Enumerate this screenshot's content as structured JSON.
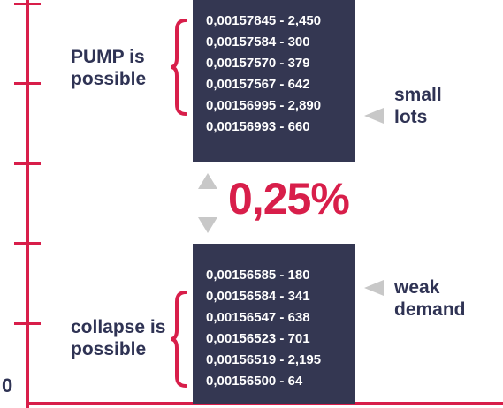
{
  "axis": {
    "zero_label": "0"
  },
  "pump": {
    "label_line1": "PUMP is",
    "label_line2": "possible",
    "orders": [
      "0,00157845 - 2,450",
      "0,00157584 - 300",
      "0,00157570 - 379",
      "0,00157567 - 642",
      "0,00156995 - 2,890",
      "0,00156993 - 660"
    ],
    "note_line1": "small",
    "note_line2": "lots"
  },
  "spread": {
    "value": "0,25%"
  },
  "collapse": {
    "label_line1": "collapse is",
    "label_line2": "possible",
    "orders": [
      "0,00156585 - 180",
      "0,00156584 - 341",
      "0,00156547 - 638",
      "0,00156523 - 701",
      "0,00156519 - 2,195",
      "0,00156500 - 64"
    ],
    "note_line1": "weak",
    "note_line2": "demand"
  },
  "colors": {
    "accent": "#d81e4a",
    "box": "#343752",
    "text": "#2f3354",
    "arrow": "#c8c8c8"
  }
}
